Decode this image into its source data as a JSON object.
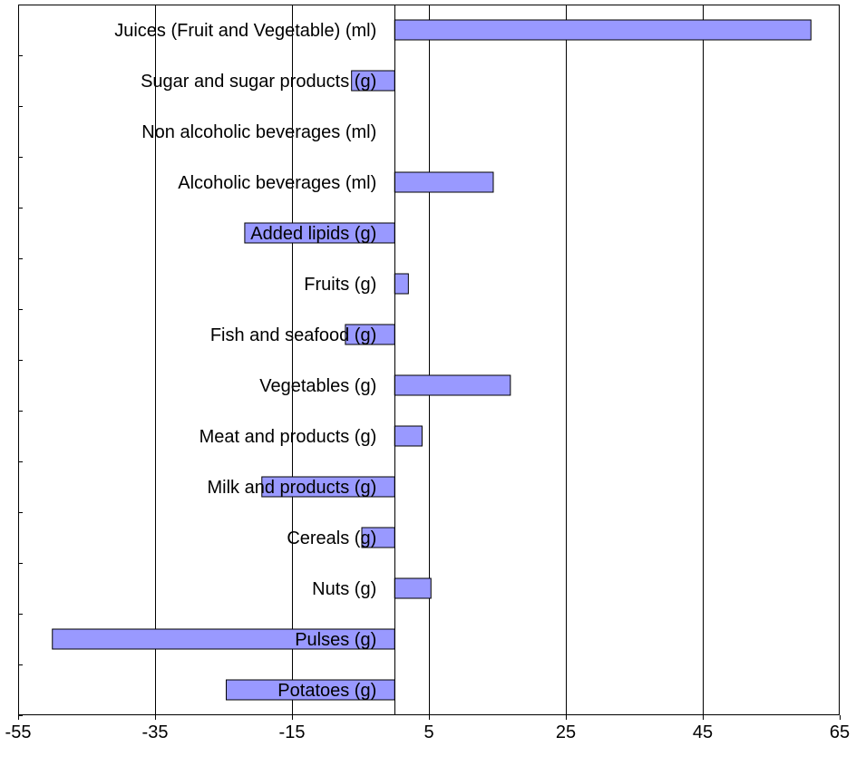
{
  "chart_data": {
    "type": "bar",
    "orientation": "horizontal",
    "title": "",
    "xlabel": "",
    "ylabel": "",
    "xlim": [
      -55,
      65
    ],
    "x_ticks": [
      -55,
      -35,
      -15,
      5,
      25,
      45,
      65
    ],
    "x_tick_labels": [
      "-55",
      "-35",
      "-15",
      "5",
      "25",
      "45",
      "65"
    ],
    "grid": "vertical",
    "legend": "none",
    "bar_color": "#9999ff",
    "bar_edge_color": "#000000",
    "categories": [
      "Juices (Fruit and Vegetable) (ml)",
      "Sugar and sugar products (g)",
      "Non alcoholic beverages (ml)",
      "Alcoholic beverages (ml)",
      "Added lipids (g)",
      "Fruits (g)",
      "Fish and seafood (g)",
      "Vegetables (g)",
      "Meat and products (g)",
      "Milk and products (g)",
      "Cereals (g)",
      "Nuts (g)",
      "Pulses (g)",
      "Potatoes (g)"
    ],
    "values": [
      60.8,
      -6.3,
      0,
      14.4,
      -21.9,
      2.0,
      -7.2,
      16.9,
      4.0,
      -19.4,
      -4.8,
      5.3,
      -50.0,
      -24.6
    ]
  }
}
